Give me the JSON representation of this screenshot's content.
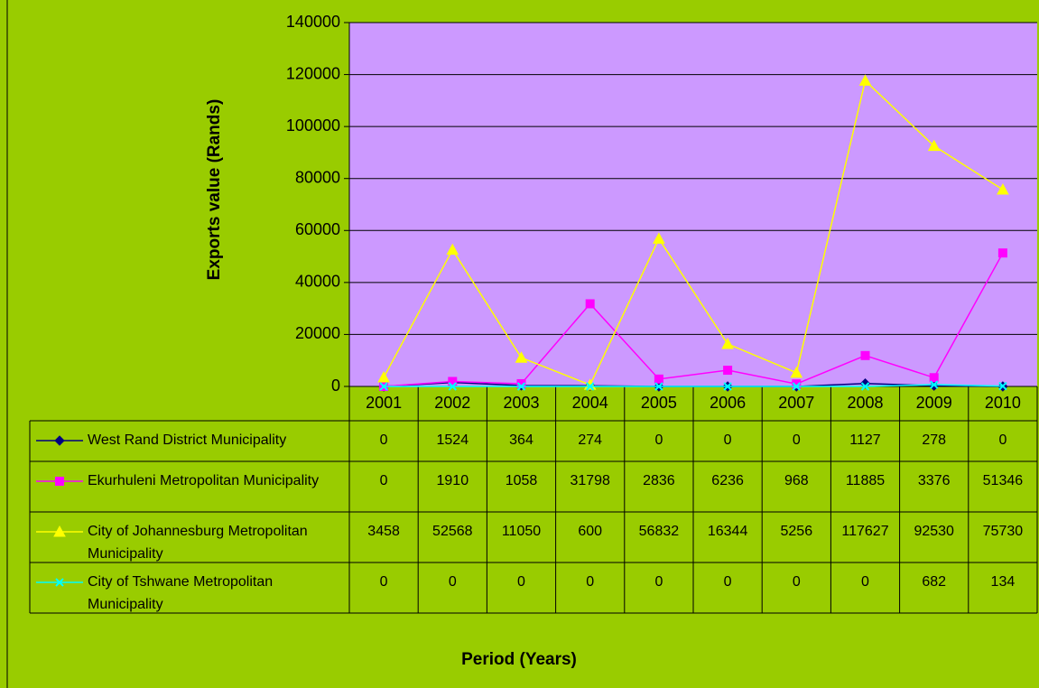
{
  "chart_data": {
    "type": "line",
    "y_label": "Exports value (Rands)",
    "x_label": "Period (Years)",
    "categories": [
      "2001",
      "2002",
      "2003",
      "2004",
      "2005",
      "2006",
      "2007",
      "2008",
      "2009",
      "2010"
    ],
    "series": [
      {
        "name": "West Rand District Municipality",
        "color": "#000080",
        "marker": "diamond",
        "values": [
          0,
          1524,
          364,
          274,
          0,
          0,
          0,
          1127,
          278,
          0
        ]
      },
      {
        "name": "Ekurhuleni Metropolitan Municipality",
        "color": "#ff00ff",
        "marker": "square",
        "values": [
          0,
          1910,
          1058,
          31798,
          2836,
          6236,
          968,
          11885,
          3376,
          51346
        ]
      },
      {
        "name": "City of Johannesburg Metropolitan Municipality",
        "color": "#ffff00",
        "marker": "triangle",
        "values": [
          3458,
          52568,
          11050,
          600,
          56832,
          16344,
          5256,
          117627,
          92530,
          75730
        ]
      },
      {
        "name": "City of Tshwane Metropolitan Municipality",
        "color": "#00ffff",
        "marker": "x",
        "values": [
          0,
          0,
          0,
          0,
          0,
          0,
          0,
          0,
          682,
          134
        ]
      }
    ],
    "ylim": [
      0,
      140000
    ],
    "yticks": [
      0,
      20000,
      40000,
      60000,
      80000,
      100000,
      120000,
      140000
    ],
    "grid": true
  }
}
